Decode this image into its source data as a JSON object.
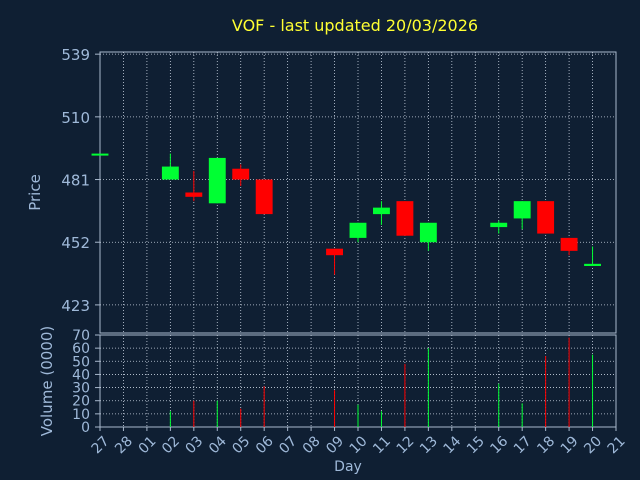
{
  "colors": {
    "background": "#0f1f33",
    "title": "#ffff33",
    "axis_text": "#9fb9d9",
    "grid": "#c8d2e0",
    "frame": "#a8b8cc",
    "up": "#00ff33",
    "down": "#ff0000"
  },
  "chart_data": {
    "type": "candlestick",
    "title": "VOF - last updated 20/03/2026",
    "xlabel": "Day",
    "price_ylabel": "Price",
    "volume_ylabel": "Volume (0000)",
    "price_ylim": [
      410,
      540
    ],
    "price_ticks": [
      423,
      452,
      481,
      510,
      539
    ],
    "volume_ylim": [
      0,
      70
    ],
    "volume_ticks": [
      0,
      10,
      20,
      30,
      40,
      50,
      60,
      70
    ],
    "x_tick_labels": [
      "27",
      "28",
      "01",
      "02",
      "03",
      "04",
      "05",
      "06",
      "07",
      "08",
      "09",
      "10",
      "11",
      "12",
      "13",
      "14",
      "15",
      "16",
      "17",
      "18",
      "19",
      "20",
      "21"
    ],
    "grid": true,
    "candles": [
      {
        "day": "27",
        "open": 493,
        "high": 493,
        "low": 493,
        "close": 493,
        "volume": 0
      },
      {
        "day": "02",
        "open": 481,
        "high": 493,
        "low": 481,
        "close": 487,
        "volume": 12
      },
      {
        "day": "03",
        "open": 475,
        "high": 485,
        "low": 471,
        "close": 473,
        "volume": 20
      },
      {
        "day": "04",
        "open": 470,
        "high": 491,
        "low": 470,
        "close": 491,
        "volume": 20
      },
      {
        "day": "05",
        "open": 486,
        "high": 488,
        "low": 478,
        "close": 481,
        "volume": 14
      },
      {
        "day": "06",
        "open": 481,
        "high": 481,
        "low": 465,
        "close": 465,
        "volume": 31
      },
      {
        "day": "09",
        "open": 449,
        "high": 449,
        "low": 437,
        "close": 446,
        "volume": 28
      },
      {
        "day": "10",
        "open": 454,
        "high": 461,
        "low": 452,
        "close": 461,
        "volume": 17
      },
      {
        "day": "11",
        "open": 465,
        "high": 471,
        "low": 460,
        "close": 468,
        "volume": 12
      },
      {
        "day": "12",
        "open": 471,
        "high": 471,
        "low": 455,
        "close": 455,
        "volume": 48
      },
      {
        "day": "13",
        "open": 452,
        "high": 461,
        "low": 448,
        "close": 461,
        "volume": 60
      },
      {
        "day": "16",
        "open": 459,
        "high": 462,
        "low": 456,
        "close": 461,
        "volume": 33
      },
      {
        "day": "17",
        "open": 463,
        "high": 471,
        "low": 458,
        "close": 471,
        "volume": 18
      },
      {
        "day": "18",
        "open": 471,
        "high": 471,
        "low": 456,
        "close": 456,
        "volume": 54
      },
      {
        "day": "19",
        "open": 454,
        "high": 454,
        "low": 446,
        "close": 448,
        "volume": 68
      },
      {
        "day": "20",
        "open": 441,
        "high": 450,
        "low": 441,
        "close": 442,
        "volume": 55
      }
    ]
  }
}
